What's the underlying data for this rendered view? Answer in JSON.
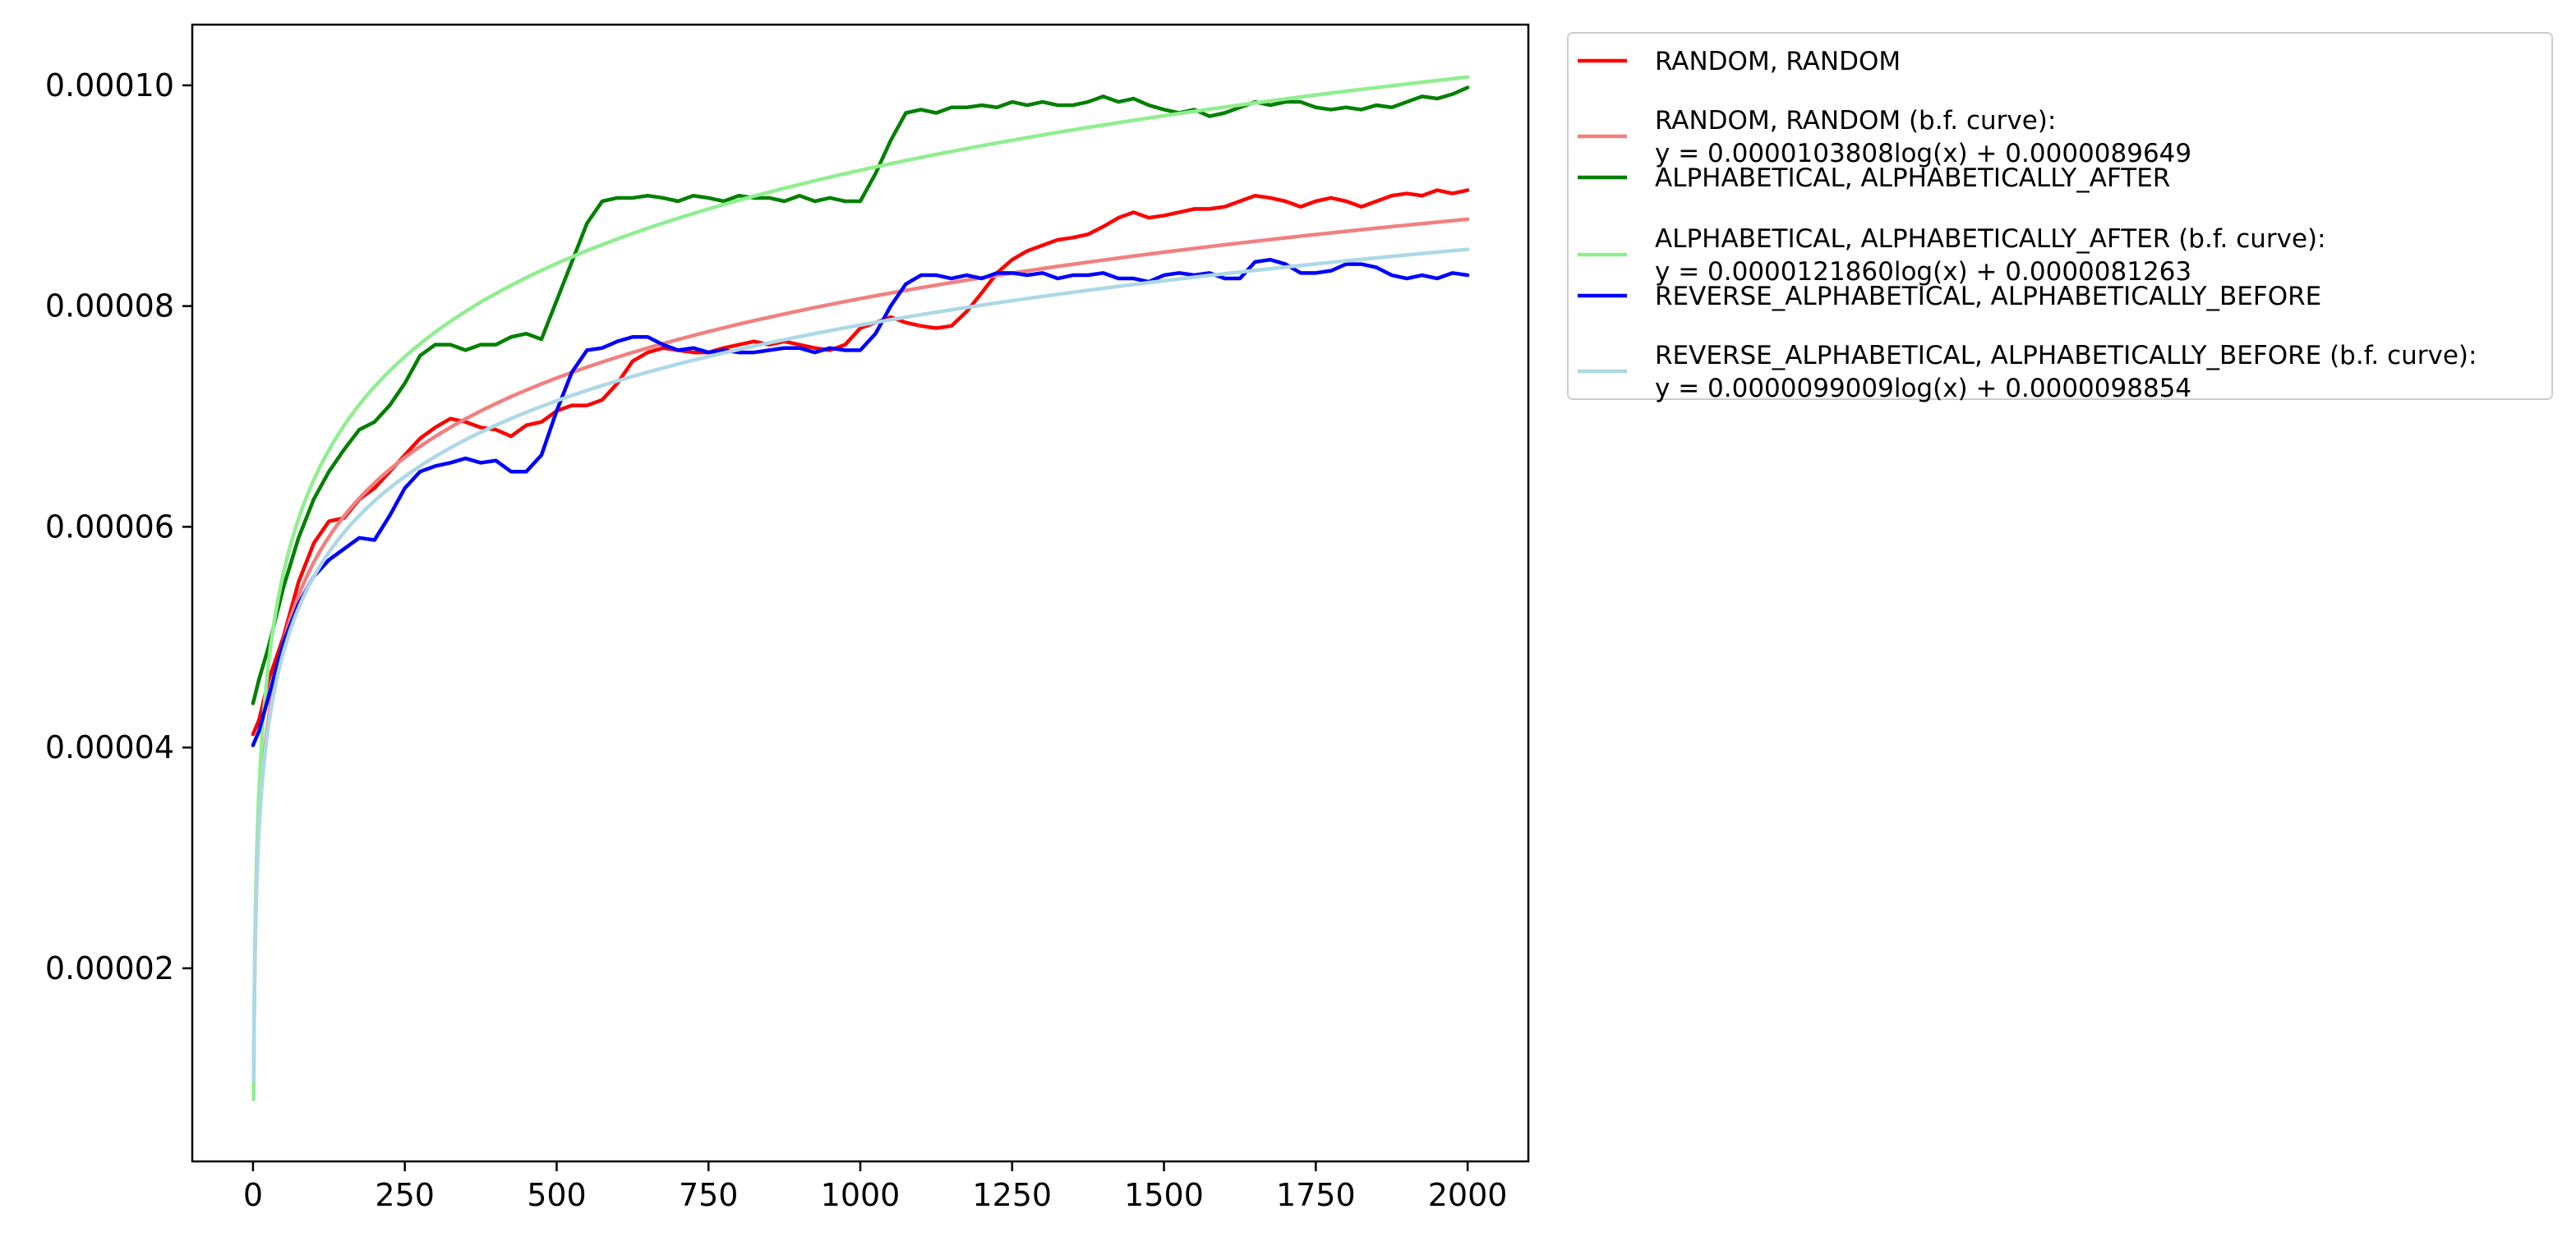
{
  "chart_data": {
    "type": "line",
    "title": "",
    "xlabel": "",
    "ylabel": "",
    "xlim": [
      -100,
      2100
    ],
    "ylim": [
      2.5e-06,
      0.0001055
    ],
    "x_ticks": [
      0,
      250,
      500,
      750,
      1000,
      1250,
      1500,
      1750,
      2000
    ],
    "x_tick_labels": [
      "0",
      "250",
      "500",
      "750",
      "1000",
      "1250",
      "1500",
      "1750",
      "2000"
    ],
    "y_ticks": [
      2e-05,
      4e-05,
      6e-05,
      8e-05,
      0.0001
    ],
    "y_tick_labels": [
      "0.00002",
      "0.00004",
      "0.00006",
      "0.00008",
      "0.00010"
    ],
    "grid": false,
    "legend_position": "outside-top-right",
    "series": [
      {
        "name": "RANDOM, RANDOM",
        "kind": "data",
        "color": "#ff0000",
        "x": [
          0,
          10,
          25,
          50,
          75,
          100,
          125,
          150,
          175,
          200,
          225,
          250,
          275,
          300,
          325,
          350,
          375,
          400,
          425,
          450,
          475,
          500,
          525,
          550,
          575,
          600,
          625,
          650,
          675,
          700,
          725,
          750,
          775,
          800,
          825,
          850,
          875,
          900,
          925,
          950,
          975,
          1000,
          1025,
          1050,
          1075,
          1100,
          1125,
          1150,
          1175,
          1200,
          1225,
          1250,
          1275,
          1300,
          1325,
          1350,
          1375,
          1400,
          1425,
          1450,
          1475,
          1500,
          1525,
          1550,
          1575,
          1600,
          1625,
          1650,
          1675,
          1700,
          1725,
          1750,
          1775,
          1800,
          1825,
          1850,
          1875,
          1900,
          1925,
          1950,
          1975,
          2000
        ],
        "y": [
          4.12e-05,
          4.25e-05,
          4.6e-05,
          5e-05,
          5.5e-05,
          5.85e-05,
          6.05e-05,
          6.08e-05,
          6.25e-05,
          6.35e-05,
          6.5e-05,
          6.65e-05,
          6.8e-05,
          6.9e-05,
          6.98e-05,
          6.95e-05,
          6.9e-05,
          6.88e-05,
          6.82e-05,
          6.92e-05,
          6.95e-05,
          7.05e-05,
          7.1e-05,
          7.1e-05,
          7.15e-05,
          7.3e-05,
          7.5e-05,
          7.58e-05,
          7.62e-05,
          7.6e-05,
          7.58e-05,
          7.58e-05,
          7.62e-05,
          7.65e-05,
          7.68e-05,
          7.65e-05,
          7.68e-05,
          7.65e-05,
          7.62e-05,
          7.6e-05,
          7.65e-05,
          7.8e-05,
          7.85e-05,
          7.9e-05,
          7.85e-05,
          7.82e-05,
          7.8e-05,
          7.82e-05,
          7.95e-05,
          8.12e-05,
          8.3e-05,
          8.42e-05,
          8.5e-05,
          8.55e-05,
          8.6e-05,
          8.62e-05,
          8.65e-05,
          8.72e-05,
          8.8e-05,
          8.85e-05,
          8.8e-05,
          8.82e-05,
          8.85e-05,
          8.88e-05,
          8.88e-05,
          8.9e-05,
          8.95e-05,
          9e-05,
          8.98e-05,
          8.95e-05,
          8.9e-05,
          8.95e-05,
          8.98e-05,
          8.95e-05,
          8.9e-05,
          8.95e-05,
          9e-05,
          9.02e-05,
          9e-05,
          9.05e-05,
          9.02e-05,
          9.05e-05
        ]
      },
      {
        "name": "RANDOM, RANDOM (b.f. curve):\n y = 0.0000103808log(x) + 0.0000089649",
        "kind": "fit",
        "color": "#f08080",
        "a": 1.03808e-05,
        "b": 8.9649e-06
      },
      {
        "name": "ALPHABETICAL, ALPHABETICALLY_AFTER",
        "kind": "data",
        "color": "#008000",
        "x": [
          0,
          10,
          25,
          50,
          75,
          100,
          125,
          150,
          175,
          200,
          225,
          250,
          275,
          300,
          325,
          350,
          375,
          400,
          425,
          450,
          475,
          500,
          525,
          550,
          575,
          600,
          625,
          650,
          675,
          700,
          725,
          750,
          775,
          800,
          825,
          850,
          875,
          900,
          925,
          950,
          975,
          1000,
          1025,
          1050,
          1075,
          1100,
          1125,
          1150,
          1175,
          1200,
          1225,
          1250,
          1275,
          1300,
          1325,
          1350,
          1375,
          1400,
          1425,
          1450,
          1475,
          1500,
          1525,
          1550,
          1575,
          1600,
          1625,
          1650,
          1675,
          1700,
          1725,
          1750,
          1775,
          1800,
          1825,
          1850,
          1875,
          1900,
          1925,
          1950,
          1975,
          2000
        ],
        "y": [
          4.4e-05,
          4.62e-05,
          4.9e-05,
          5.45e-05,
          5.9e-05,
          6.25e-05,
          6.5e-05,
          6.7e-05,
          6.88e-05,
          6.95e-05,
          7.1e-05,
          7.3e-05,
          7.55e-05,
          7.65e-05,
          7.65e-05,
          7.6e-05,
          7.65e-05,
          7.65e-05,
          7.72e-05,
          7.75e-05,
          7.7e-05,
          8.05e-05,
          8.4e-05,
          8.75e-05,
          8.95e-05,
          8.98e-05,
          8.98e-05,
          9e-05,
          8.98e-05,
          8.95e-05,
          9e-05,
          8.98e-05,
          8.95e-05,
          9e-05,
          8.98e-05,
          8.98e-05,
          8.95e-05,
          9e-05,
          8.95e-05,
          8.98e-05,
          8.95e-05,
          8.95e-05,
          9.2e-05,
          9.5e-05,
          9.75e-05,
          9.78e-05,
          9.75e-05,
          9.8e-05,
          9.8e-05,
          9.82e-05,
          9.8e-05,
          9.85e-05,
          9.82e-05,
          9.85e-05,
          9.82e-05,
          9.82e-05,
          9.85e-05,
          9.9e-05,
          9.85e-05,
          9.88e-05,
          9.82e-05,
          9.78e-05,
          9.75e-05,
          9.78e-05,
          9.72e-05,
          9.75e-05,
          9.8e-05,
          9.85e-05,
          9.82e-05,
          9.85e-05,
          9.85e-05,
          9.8e-05,
          9.78e-05,
          9.8e-05,
          9.78e-05,
          9.82e-05,
          9.8e-05,
          9.85e-05,
          9.9e-05,
          9.88e-05,
          9.92e-05,
          9.98e-05
        ]
      },
      {
        "name": "ALPHABETICAL, ALPHABETICALLY_AFTER (b.f. curve):\n y = 0.0000121860log(x) + 0.0000081263",
        "kind": "fit",
        "color": "#90ee90",
        "a": 1.2186e-05,
        "b": 8.1263e-06
      },
      {
        "name": "REVERSE_ALPHABETICAL, ALPHABETICALLY_BEFORE",
        "kind": "data",
        "color": "#0000ff",
        "x": [
          0,
          10,
          25,
          50,
          75,
          100,
          125,
          150,
          175,
          200,
          225,
          250,
          275,
          300,
          325,
          350,
          375,
          400,
          425,
          450,
          475,
          500,
          525,
          550,
          575,
          600,
          625,
          650,
          675,
          700,
          725,
          750,
          775,
          800,
          825,
          850,
          875,
          900,
          925,
          950,
          975,
          1000,
          1025,
          1050,
          1075,
          1100,
          1125,
          1150,
          1175,
          1200,
          1225,
          1250,
          1275,
          1300,
          1325,
          1350,
          1375,
          1400,
          1425,
          1450,
          1475,
          1500,
          1525,
          1550,
          1575,
          1600,
          1625,
          1650,
          1675,
          1700,
          1725,
          1750,
          1775,
          1800,
          1825,
          1850,
          1875,
          1900,
          1925,
          1950,
          1975,
          2000
        ],
        "y": [
          4.02e-05,
          4.15e-05,
          4.45e-05,
          4.95e-05,
          5.3e-05,
          5.55e-05,
          5.7e-05,
          5.8e-05,
          5.9e-05,
          5.88e-05,
          6.1e-05,
          6.35e-05,
          6.5e-05,
          6.55e-05,
          6.58e-05,
          6.62e-05,
          6.58e-05,
          6.6e-05,
          6.5e-05,
          6.5e-05,
          6.65e-05,
          7.05e-05,
          7.4e-05,
          7.6e-05,
          7.62e-05,
          7.68e-05,
          7.72e-05,
          7.72e-05,
          7.65e-05,
          7.6e-05,
          7.62e-05,
          7.58e-05,
          7.6e-05,
          7.58e-05,
          7.58e-05,
          7.6e-05,
          7.62e-05,
          7.62e-05,
          7.58e-05,
          7.62e-05,
          7.6e-05,
          7.6e-05,
          7.75e-05,
          8e-05,
          8.2e-05,
          8.28e-05,
          8.28e-05,
          8.25e-05,
          8.28e-05,
          8.25e-05,
          8.3e-05,
          8.3e-05,
          8.28e-05,
          8.3e-05,
          8.25e-05,
          8.28e-05,
          8.28e-05,
          8.3e-05,
          8.25e-05,
          8.25e-05,
          8.22e-05,
          8.28e-05,
          8.3e-05,
          8.28e-05,
          8.3e-05,
          8.25e-05,
          8.25e-05,
          8.4e-05,
          8.42e-05,
          8.38e-05,
          8.3e-05,
          8.3e-05,
          8.32e-05,
          8.38e-05,
          8.38e-05,
          8.35e-05,
          8.28e-05,
          8.25e-05,
          8.28e-05,
          8.25e-05,
          8.3e-05,
          8.28e-05
        ]
      },
      {
        "name": "REVERSE_ALPHABETICAL, ALPHABETICALLY_BEFORE (b.f. curve):\n y = 0.0000099009log(x) + 0.0000098854",
        "kind": "fit",
        "color": "#add8e6",
        "a": 9.9009e-06,
        "b": 9.8854e-06
      }
    ],
    "legend": {
      "entries": [
        {
          "color": "#ff0000",
          "lines": [
            "RANDOM, RANDOM"
          ]
        },
        {
          "color": "#f08080",
          "lines": [
            "RANDOM, RANDOM (b.f. curve):",
            " y = 0.0000103808log(x) + 0.0000089649"
          ]
        },
        {
          "color": "#008000",
          "lines": [
            "ALPHABETICAL, ALPHABETICALLY_AFTER"
          ]
        },
        {
          "color": "#90ee90",
          "lines": [
            "ALPHABETICAL, ALPHABETICALLY_AFTER (b.f. curve):",
            " y = 0.0000121860log(x) + 0.0000081263"
          ]
        },
        {
          "color": "#0000ff",
          "lines": [
            "REVERSE_ALPHABETICAL, ALPHABETICALLY_BEFORE"
          ]
        },
        {
          "color": "#add8e6",
          "lines": [
            "REVERSE_ALPHABETICAL, ALPHABETICALLY_BEFORE (b.f. curve):",
            " y = 0.0000099009log(x) + 0.0000098854"
          ]
        }
      ]
    }
  }
}
